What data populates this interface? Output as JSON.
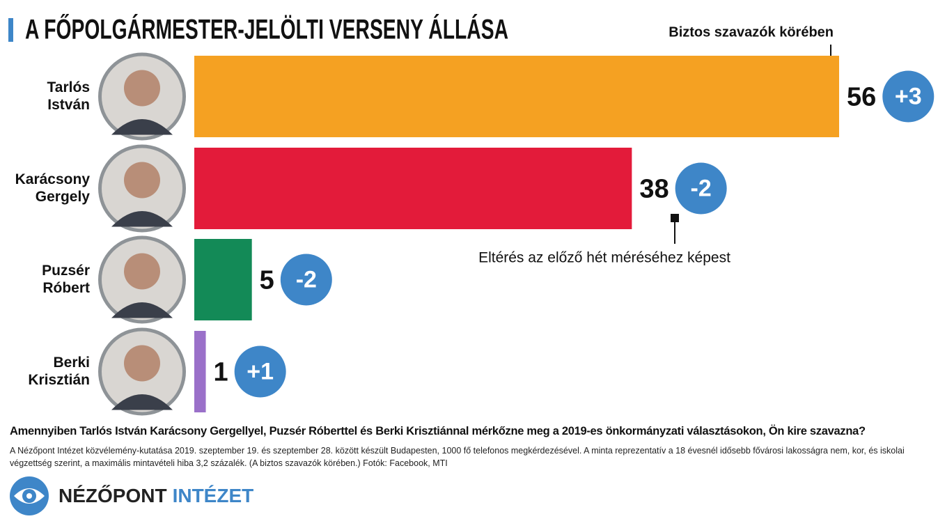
{
  "chart_data": {
    "type": "bar",
    "title": "A FŐPOLGÁRMESTER-JELÖLTI VERSENY ÁLLÁSA",
    "categories": [
      [
        "Tarlós",
        "István"
      ],
      [
        "Karácsony",
        "Gergely"
      ],
      [
        "Puzsér",
        "Róbert"
      ],
      [
        "Berki",
        "Krisztián"
      ]
    ],
    "values": [
      56,
      38,
      5,
      1
    ],
    "colors": [
      "#f5a122",
      "#e31b3a",
      "#138a57",
      "#9a70c9"
    ],
    "changes": {
      "values": [
        3,
        -2,
        -2,
        1
      ],
      "value_labels": [
        "+3",
        "-2",
        "-2",
        "+1"
      ],
      "color": "#3e86c8"
    },
    "annotations": [
      "Biztos szavazók körében",
      "Eltérés az előző hét méréséhez képest"
    ]
  },
  "footer": {
    "question": "Amennyiben Tarlós István Karácsony Gergellyel, Puzsér Róberttel és Berki Krisztiánnal mérkőzne meg a 2019-es önkormányzati választásokon, Ön kire szavazna?",
    "note": "A Nézőpont Intézet közvélemény-kutatása 2019. szeptember 19. és szeptember 28. között készült Budapesten, 1000 fő telefonos megkérdezésével. A minta reprezentatív a 18 évesnél idősebb fővárosi lakosságra nem, kor, és iskolai végzettség szerint, a maximális mintavételi hiba 3,2 százalék. (A biztos szavazók körében.) Fotók: Facebook, MTI",
    "logo": [
      "NÉZŐPONT",
      "INTÉZET"
    ]
  }
}
